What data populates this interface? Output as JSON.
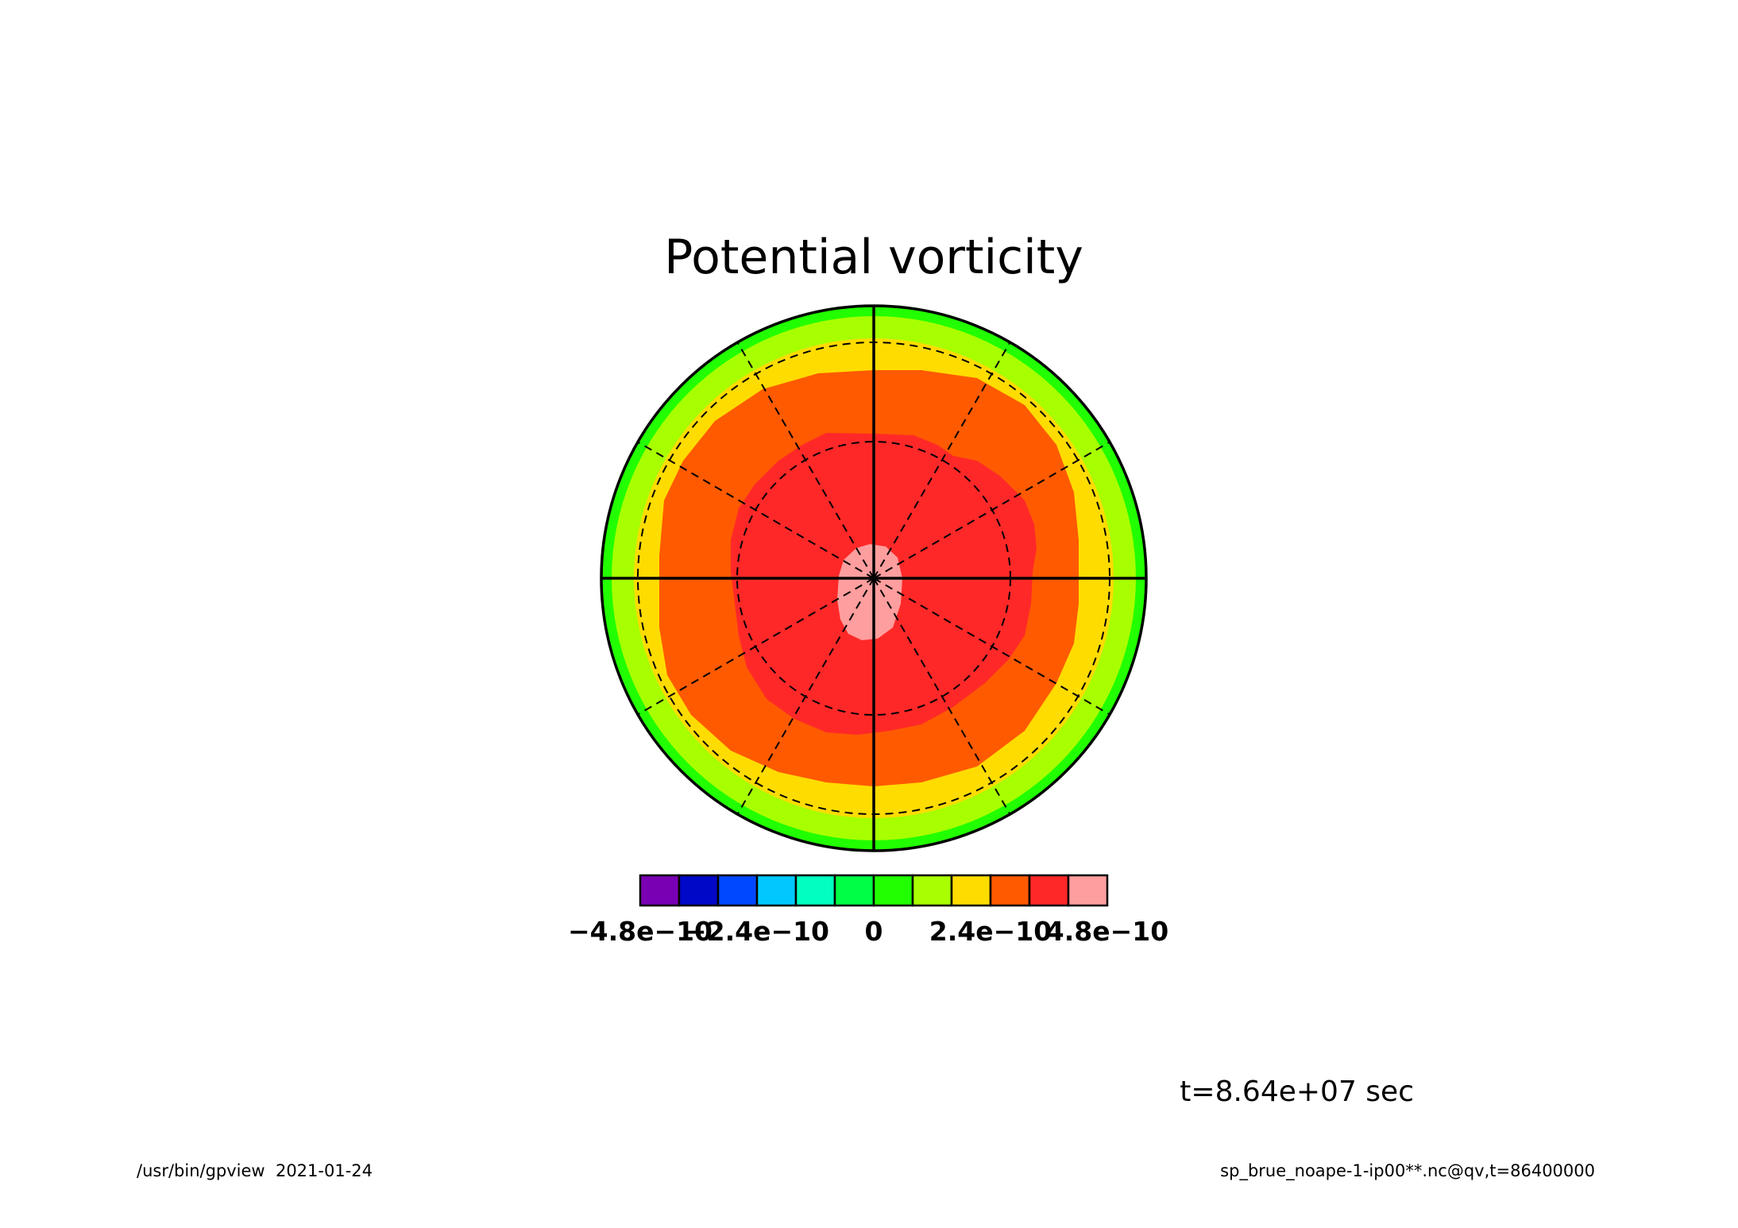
{
  "chart_data": {
    "type": "heatmap",
    "projection": "polar stereographic",
    "title": "Potential vorticity",
    "time_label": "t=8.64e+07 sec",
    "colorbar": {
      "colors": [
        "#7a00b4",
        "#0008c8",
        "#0048ff",
        "#00c8ff",
        "#00ffc0",
        "#00ff44",
        "#22ff00",
        "#a8ff00",
        "#ffdc00",
        "#ff5a00",
        "#ff2828",
        "#ff9e9e"
      ],
      "tick_labels": [
        "−4.8e−10",
        "−2.4e−10",
        "0",
        "2.4e−10",
        "4.8e−10"
      ],
      "tick_values": [
        -4.8e-10,
        -2.4e-10,
        0,
        2.4e-10,
        4.8e-10
      ],
      "level_step": 8e-11
    },
    "grid": "dashed latitude circles and meridians every 30 degrees",
    "field_levels_from_edge_to_pole": [
      {
        "range": "8e-11 to 1.6e-10",
        "color": "#22ff00"
      },
      {
        "range": "1.6e-10 to 2.4e-10",
        "color": "#a8ff00"
      },
      {
        "range": "2.4e-10 to 3.2e-10",
        "color": "#ffdc00"
      },
      {
        "range": "3.2e-10 to 4.0e-10",
        "color": "#ff5a00"
      },
      {
        "range": "4.0e-10 to 4.8e-10",
        "color": "#ff2828"
      },
      {
        "range": "4.8e-10 to 5.6e-10",
        "color": "#ff9e9e"
      }
    ]
  },
  "footer": {
    "left": "/usr/bin/gpview  2021-01-24",
    "right": "sp_brue_noape-1-ip00**.nc@qv,t=86400000"
  }
}
